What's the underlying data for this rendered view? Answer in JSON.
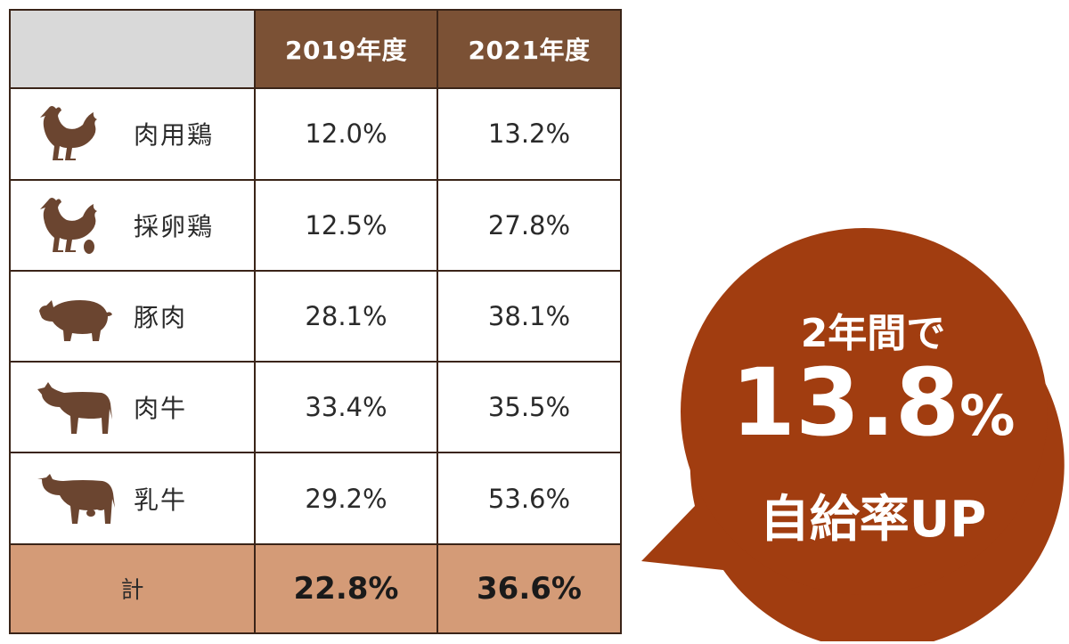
{
  "chart_data": {
    "type": "table",
    "columns": [
      "",
      "2019年度",
      "2021年度"
    ],
    "rows": [
      {
        "icon": "chicken-icon",
        "label": "肉用鶏",
        "values": [
          "12.0%",
          "13.2%"
        ]
      },
      {
        "icon": "hen-with-egg-icon",
        "label": "採卵鶏",
        "values": [
          "12.5%",
          "27.8%"
        ]
      },
      {
        "icon": "pig-icon",
        "label": "豚肉",
        "values": [
          "28.1%",
          "38.1%"
        ]
      },
      {
        "icon": "beef-cattle-icon",
        "label": "肉牛",
        "values": [
          "33.4%",
          "35.5%"
        ]
      },
      {
        "icon": "dairy-cow-icon",
        "label": "乳牛",
        "values": [
          "29.2%",
          "53.6%"
        ]
      }
    ],
    "total": {
      "label": "計",
      "values": [
        "22.8%",
        "36.6%"
      ]
    }
  },
  "callout": {
    "line1": "2年間で",
    "line2": "13.8",
    "line2_unit": "%",
    "line3": "自給率UP"
  },
  "colors": {
    "header_bg": "#7b5135",
    "header_blank_bg": "#d9d9d9",
    "total_bg": "#d49b77",
    "icon": "#6b4530",
    "callout_bg": "#a13d10",
    "border": "#3a2418"
  }
}
